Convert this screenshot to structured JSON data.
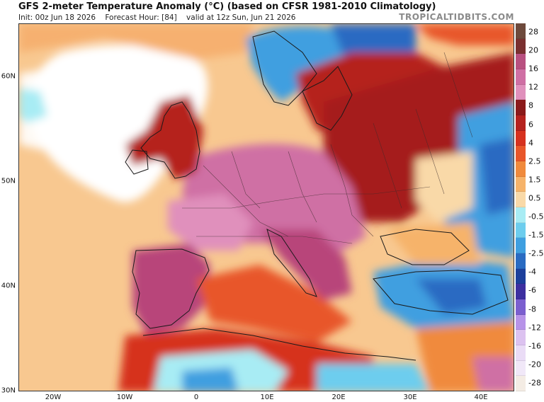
{
  "header": {
    "title": "GFS 2-meter Temperature Anomaly (°C) (based on CFSR 1981-2010 Climatology)",
    "init": "Init: 00z Jun 18 2026",
    "forecast_hour": "Forecast Hour: [84]",
    "valid": "valid at 12z Sun, Jun 21 2026",
    "brand": "TROPICALTIDBITS.COM"
  },
  "map": {
    "lat_labels": [
      "60N",
      "50N",
      "40N",
      "30N"
    ],
    "lon_labels": [
      "20W",
      "10W",
      "0",
      "10E",
      "20E",
      "30E",
      "40E"
    ]
  },
  "colorbar": {
    "labels": [
      "28",
      "20",
      "16",
      "12",
      "8",
      "6",
      "4",
      "2.5",
      "1.5",
      "0.5",
      "-0.5",
      "-1.5",
      "-2.5",
      "-4",
      "-6",
      "-8",
      "-12",
      "-16",
      "-20",
      "-28"
    ],
    "colors": [
      "#6e4a3c",
      "#7a3030",
      "#b85080",
      "#cf6fa4",
      "#e090bc",
      "#8b1a1a",
      "#b5221e",
      "#d6311f",
      "#e8562a",
      "#f08a3c",
      "#f6b36a",
      "#f9d9a8",
      "#a8ecf4",
      "#6dcdee",
      "#3f9fe0",
      "#2a6bc2",
      "#1c3f9c",
      "#3d2fa0",
      "#7b5fcf",
      "#b793e8",
      "#dcc2f0",
      "#eadcf6",
      "#f1e8f8",
      "#f4ece4"
    ]
  }
}
